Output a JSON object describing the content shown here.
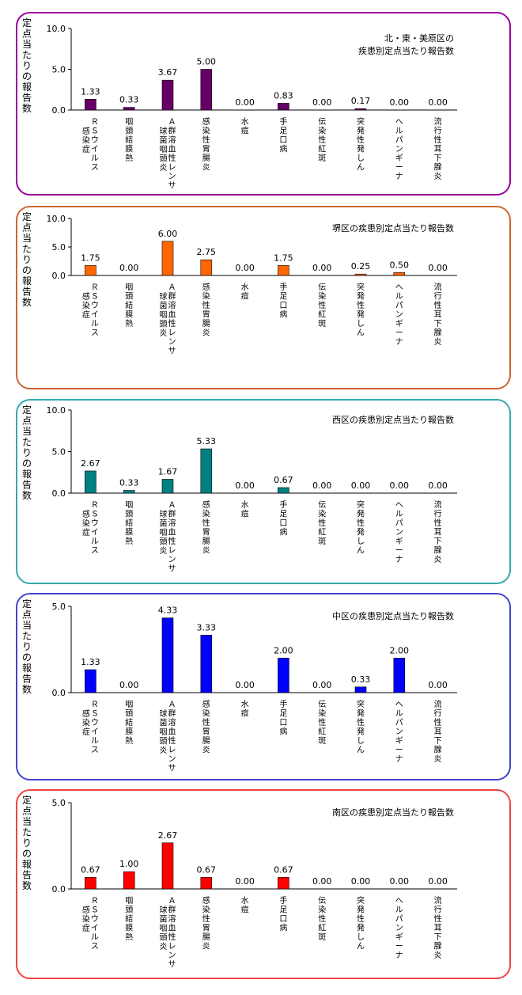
{
  "chart_data": [
    {
      "type": "bar",
      "title": [
        "北・東・美原区の",
        "疾患別定点当たり報告数"
      ],
      "ylabel": "定点当たりの報告数",
      "ylim": [
        0,
        10
      ],
      "yticks": [
        "0.0",
        "5.0",
        "10.0"
      ],
      "color": "#660066",
      "border_color": "#990099",
      "categories": [
        [
          "ＲＳウイルス",
          "感染症"
        ],
        [
          "咽頭結膜熱"
        ],
        [
          "Ａ群溶血性レンサ",
          "球菌咽頭炎"
        ],
        [
          "感染性胃腸炎"
        ],
        [
          "水痘"
        ],
        [
          "手足口病"
        ],
        [
          "伝染性紅斑"
        ],
        [
          "突発性発しん"
        ],
        [
          "ヘルパンギーナ"
        ],
        [
          "流行性耳下腺炎"
        ]
      ],
      "values": [
        1.33,
        0.33,
        3.67,
        5.0,
        0.0,
        0.83,
        0.0,
        0.17,
        0.0,
        0.0
      ],
      "value_labels": [
        "1.33",
        "0.33",
        "3.67",
        "5.00",
        "0.00",
        "0.83",
        "0.00",
        "0.17",
        "0.00",
        "0.00"
      ]
    },
    {
      "type": "bar",
      "title": [
        "堺区の疾患別定点当たり報告数"
      ],
      "ylabel": "定点当たりの報告数",
      "ylim": [
        0,
        10
      ],
      "yticks": [
        "0.0",
        "5.0",
        "10.0"
      ],
      "color": "#ff6600",
      "border_color": "#cc6633",
      "categories": [
        [
          "ＲＳウイルス",
          "感染症"
        ],
        [
          "咽頭結膜熱"
        ],
        [
          "Ａ群溶血性レンサ",
          "球菌咽頭炎"
        ],
        [
          "感染性胃腸炎"
        ],
        [
          "水痘"
        ],
        [
          "手足口病"
        ],
        [
          "伝染性紅斑"
        ],
        [
          "突発性発しん"
        ],
        [
          "ヘルパンギーナ"
        ],
        [
          "流行性耳下腺炎"
        ]
      ],
      "values": [
        1.75,
        0.0,
        6.0,
        2.75,
        0.0,
        1.75,
        0.0,
        0.25,
        0.5,
        0.0
      ],
      "value_labels": [
        "1.75",
        "0.00",
        "6.00",
        "2.75",
        "0.00",
        "1.75",
        "0.00",
        "0.25",
        "0.50",
        "0.00"
      ]
    },
    {
      "type": "bar",
      "title": [
        "西区の疾患別定点当たり報告数"
      ],
      "ylabel": "定点当たりの報告数",
      "ylim": [
        0,
        10
      ],
      "yticks": [
        "0.0",
        "5.0",
        "10.0"
      ],
      "color": "#008080",
      "border_color": "#33aaaa",
      "categories": [
        [
          "ＲＳウイルス",
          "感染症"
        ],
        [
          "咽頭結膜熱"
        ],
        [
          "Ａ群溶血性レンサ",
          "球菌咽頭炎"
        ],
        [
          "感染性胃腸炎"
        ],
        [
          "水痘"
        ],
        [
          "手足口病"
        ],
        [
          "伝染性紅斑"
        ],
        [
          "突発性発しん"
        ],
        [
          "ヘルパンギーナ"
        ],
        [
          "流行性耳下腺炎"
        ]
      ],
      "values": [
        2.67,
        0.33,
        1.67,
        5.33,
        0.0,
        0.67,
        0.0,
        0.0,
        0.0,
        0.0
      ],
      "value_labels": [
        "2.67",
        "0.33",
        "1.67",
        "5.33",
        "0.00",
        "0.67",
        "0.00",
        "0.00",
        "0.00",
        "0.00"
      ]
    },
    {
      "type": "bar",
      "title": [
        "中区の疾患別定点当たり報告数"
      ],
      "ylabel": "定点当たりの報告数",
      "ylim": [
        0,
        5
      ],
      "yticks": [
        "0.0",
        "5.0"
      ],
      "color": "#0000ff",
      "border_color": "#4444cc",
      "categories": [
        [
          "ＲＳウイルス",
          "感染症"
        ],
        [
          "咽頭結膜熱"
        ],
        [
          "Ａ群溶血性レンサ",
          "球菌咽頭炎"
        ],
        [
          "感染性胃腸炎"
        ],
        [
          "水痘"
        ],
        [
          "手足口病"
        ],
        [
          "伝染性紅斑"
        ],
        [
          "突発性発しん"
        ],
        [
          "ヘルパンギーナ"
        ],
        [
          "流行性耳下腺炎"
        ]
      ],
      "values": [
        1.33,
        0.0,
        4.33,
        3.33,
        0.0,
        2.0,
        0.0,
        0.33,
        2.0,
        0.0
      ],
      "value_labels": [
        "1.33",
        "0.00",
        "4.33",
        "3.33",
        "0.00",
        "2.00",
        "0.00",
        "0.33",
        "2.00",
        "0.00"
      ]
    },
    {
      "type": "bar",
      "title": [
        "南区の疾患別定点当たり報告数"
      ],
      "ylabel": "定点当たりの報告数",
      "ylim": [
        0,
        5
      ],
      "yticks": [
        "0.0",
        "5.0"
      ],
      "color": "#ff0000",
      "border_color": "#ee4444",
      "categories": [
        [
          "ＲＳウイルス",
          "感染症"
        ],
        [
          "咽頭結膜熱"
        ],
        [
          "Ａ群溶血性レンサ",
          "球菌咽頭炎"
        ],
        [
          "感染性胃腸炎"
        ],
        [
          "水痘"
        ],
        [
          "手足口病"
        ],
        [
          "伝染性紅斑"
        ],
        [
          "突発性発しん"
        ],
        [
          "ヘルパンギーナ"
        ],
        [
          "流行性耳下腺炎"
        ]
      ],
      "values": [
        0.67,
        1.0,
        2.67,
        0.67,
        0.0,
        0.67,
        0.0,
        0.0,
        0.0,
        0.0
      ],
      "value_labels": [
        "0.67",
        "1.00",
        "2.67",
        "0.67",
        "0.00",
        "0.67",
        "0.00",
        "0.00",
        "0.00",
        "0.00"
      ]
    }
  ]
}
